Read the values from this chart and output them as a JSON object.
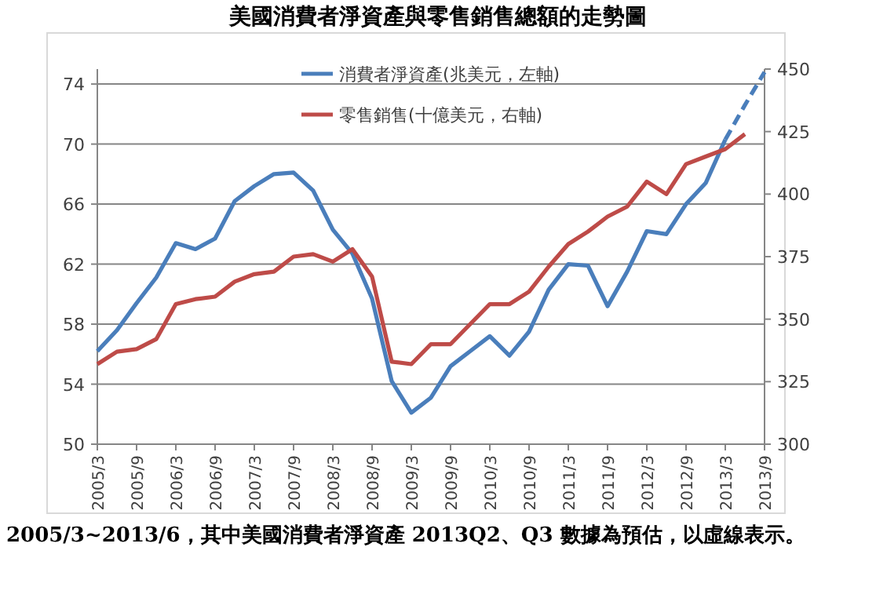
{
  "chart_data": {
    "type": "line",
    "title": "美國消費者淨資產與零售銷售總額的走勢圖",
    "categories": [
      "2005/3",
      null,
      "2005/9",
      null,
      "2006/3",
      null,
      "2006/9",
      null,
      "2007/3",
      null,
      "2007/9",
      null,
      "2008/3",
      null,
      "2008/9",
      null,
      "2009/3",
      null,
      "2009/9",
      null,
      "2010/3",
      null,
      "2010/9",
      null,
      "2011/3",
      null,
      "2011/9",
      null,
      "2012/3",
      null,
      "2012/9",
      null,
      "2013/3",
      null,
      "2013/9"
    ],
    "series": [
      {
        "name": "消費者淨資產(兆美元，左軸)",
        "color": "#4a7ebb",
        "line_style": "solid",
        "values": [
          56.2,
          57.6,
          59.4,
          61.1,
          63.4,
          63.0,
          63.7,
          66.2,
          67.2,
          68.0,
          68.1,
          66.9,
          64.3,
          62.7,
          59.7,
          54.2,
          52.1,
          53.1,
          55.2,
          56.2,
          57.2,
          55.9,
          57.5,
          60.3,
          62.0,
          61.9,
          59.2,
          61.5,
          64.2,
          64.0,
          66.0,
          67.4,
          70.3,
          null,
          null
        ]
      },
      {
        "name": "零售銷售(十億美元，右軸)",
        "color": "#be4b48",
        "axis": "y2",
        "line_style": "solid",
        "values": [
          332,
          337,
          338,
          342,
          356,
          358,
          359,
          365,
          368,
          369,
          375,
          376,
          373,
          378,
          367,
          333,
          332,
          340,
          340,
          348,
          356,
          356,
          361,
          371,
          380,
          385,
          391,
          395,
          405,
          400,
          412,
          415,
          418,
          424,
          null
        ]
      },
      {
        "color": "#4a7ebb",
        "line_style": "dashed",
        "values": [
          null,
          null,
          null,
          null,
          null,
          null,
          null,
          null,
          null,
          null,
          null,
          null,
          null,
          null,
          null,
          null,
          null,
          null,
          null,
          null,
          null,
          null,
          null,
          null,
          null,
          null,
          null,
          null,
          null,
          null,
          null,
          null,
          70.3,
          72.6,
          74.8
        ]
      }
    ],
    "ylim": [
      50,
      75
    ],
    "yticks": [
      50,
      54,
      58,
      62,
      66,
      70,
      74
    ],
    "y2lim": [
      300,
      450
    ],
    "y2ticks": [
      300,
      325,
      350,
      375,
      400,
      425,
      450
    ],
    "grid": "y",
    "legend": "top",
    "annotations": [
      "2005/3~2013/6，其中美國消費者淨資產 2013Q2、Q3 數據為預估，以虛線表示。"
    ]
  }
}
